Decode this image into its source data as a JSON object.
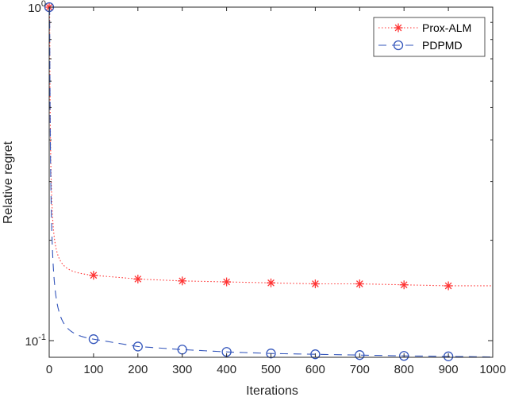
{
  "chart_data": {
    "type": "line",
    "title": "",
    "xlabel": "Iterations",
    "ylabel": "Relative regret",
    "xscale": "linear",
    "yscale": "log",
    "xlim": [
      0,
      1000
    ],
    "ylim": [
      0.089,
      1
    ],
    "xticks": [
      0,
      100,
      200,
      300,
      400,
      500,
      600,
      700,
      800,
      900,
      1000
    ],
    "xtick_labels": [
      "0",
      "100",
      "200",
      "300",
      "400",
      "500",
      "600",
      "700",
      "800",
      "900",
      "1000"
    ],
    "yticks": [
      0.1,
      1
    ],
    "ytick_labels": [
      {
        "base": "10",
        "exp": "-1"
      },
      {
        "base": "10",
        "exp": "0"
      }
    ],
    "grid": false,
    "legend_position": "upper right",
    "series": [
      {
        "name": "Prox-ALM",
        "color": "#ff3333",
        "linestyle": "dotted",
        "marker": "asterisk",
        "x": [
          1,
          100,
          200,
          300,
          400,
          500,
          600,
          700,
          800,
          900,
          1000
        ],
        "values": [
          1.0,
          0.157,
          0.153,
          0.151,
          0.15,
          0.149,
          0.148,
          0.148,
          0.147,
          0.146,
          0.146
        ]
      },
      {
        "name": "PDPMD",
        "color": "#3355bb",
        "linestyle": "dashed",
        "marker": "circle",
        "x": [
          1,
          100,
          200,
          300,
          400,
          500,
          600,
          700,
          800,
          900,
          1000
        ],
        "values": [
          1.0,
          0.101,
          0.096,
          0.094,
          0.0925,
          0.0915,
          0.091,
          0.0905,
          0.09,
          0.0897,
          0.0893
        ]
      }
    ]
  }
}
